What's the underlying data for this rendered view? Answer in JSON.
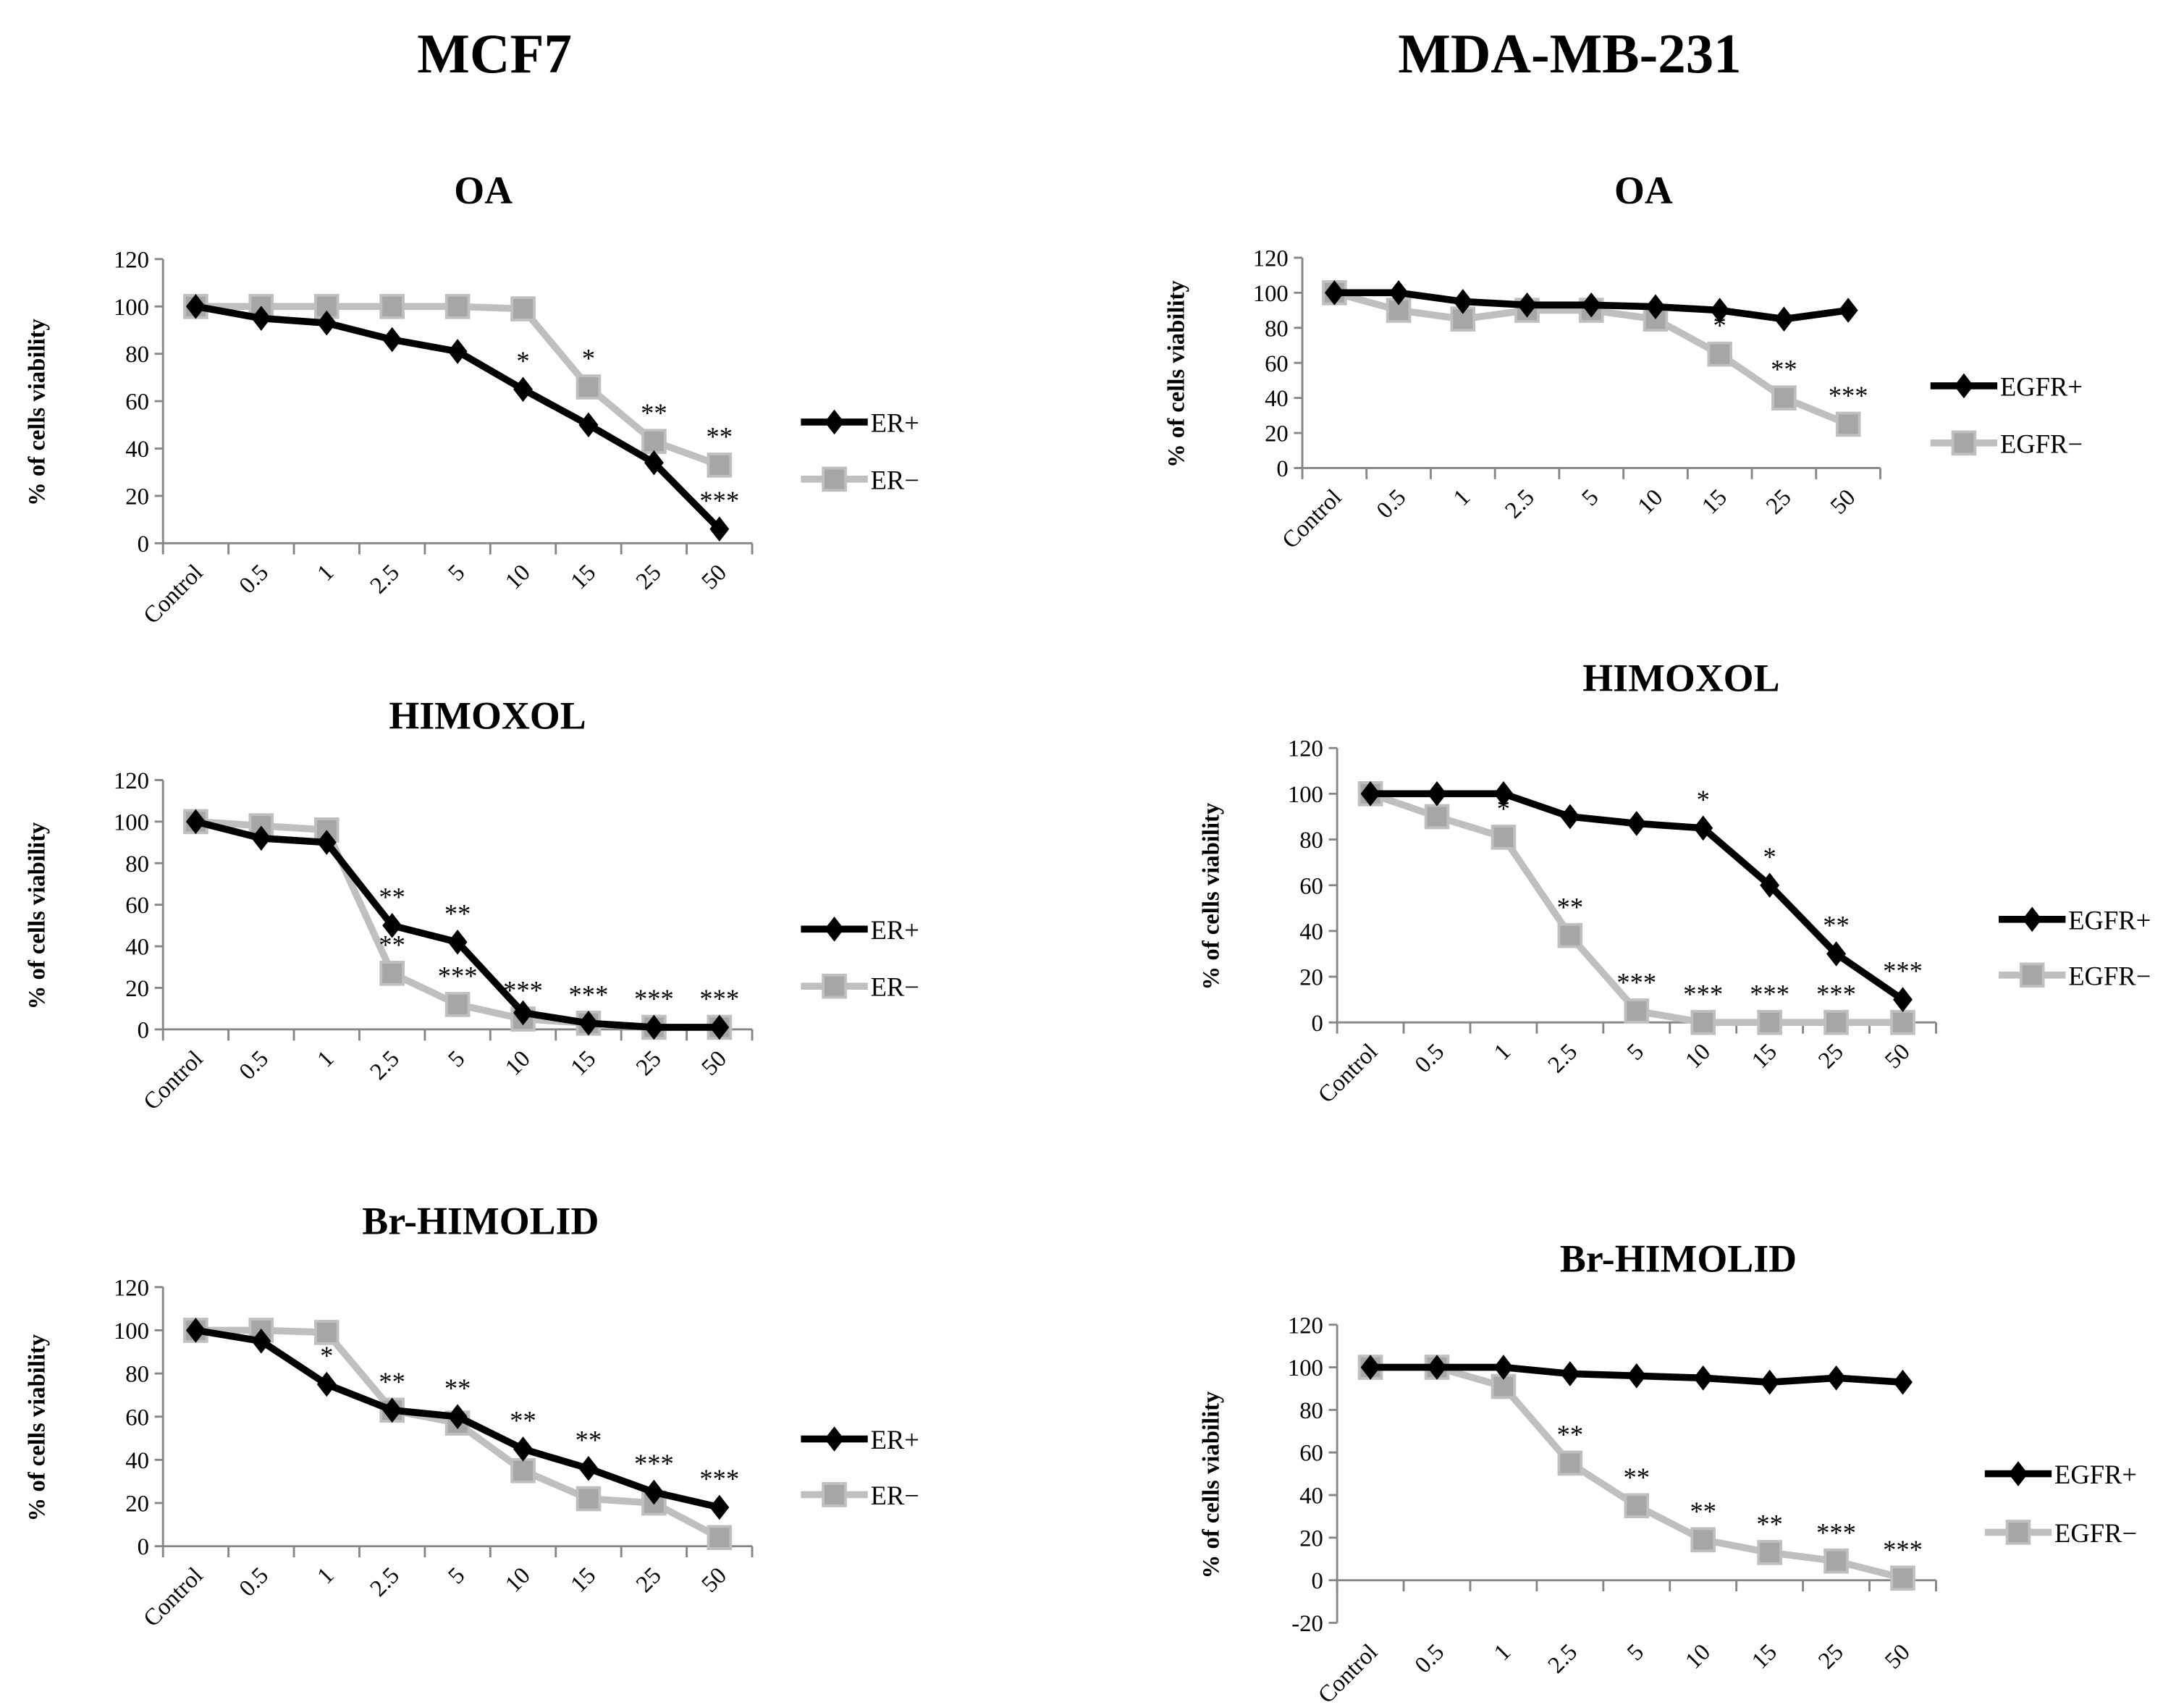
{
  "group_titles": [
    "MCF7",
    "MDA-MB-231"
  ],
  "colors": {
    "positive": "#000000",
    "negative": "#bfbfbf",
    "negative_marker": "#a6a6a6",
    "axis": "#868686"
  },
  "chart_data": [
    {
      "type": "line",
      "group": "MCF7",
      "title": "OA",
      "ylabel": "% of cells viability",
      "ylim": [
        0,
        120
      ],
      "yticks": [
        0,
        20,
        40,
        60,
        80,
        100,
        120
      ],
      "categories": [
        "Control",
        "0.5",
        "1",
        "2.5",
        "5",
        "10",
        "15",
        "25",
        "50"
      ],
      "legend": "right",
      "series": [
        {
          "name": "ER+",
          "marker": "diamond",
          "values": [
            100,
            95,
            93,
            86,
            81,
            65,
            50,
            34,
            6
          ],
          "stars": [
            "",
            "",
            "",
            "",
            "",
            "*",
            "",
            "",
            "***"
          ]
        },
        {
          "name": "ER−",
          "marker": "square",
          "values": [
            100,
            100,
            100,
            100,
            100,
            99,
            66,
            43,
            33
          ],
          "stars": [
            "",
            "",
            "",
            "",
            "",
            "",
            "*",
            "**",
            "**"
          ]
        }
      ]
    },
    {
      "type": "line",
      "group": "MCF7",
      "title": "HIMOXOL",
      "ylabel": "% of cells viability",
      "ylim": [
        0,
        120
      ],
      "yticks": [
        0,
        20,
        40,
        60,
        80,
        100,
        120
      ],
      "categories": [
        "Control",
        "0.5",
        "1",
        "2.5",
        "5",
        "10",
        "15",
        "25",
        "50"
      ],
      "legend": "right",
      "series": [
        {
          "name": "ER+",
          "marker": "diamond",
          "values": [
            100,
            92,
            90,
            50,
            42,
            8,
            3,
            1,
            1
          ],
          "stars": [
            "",
            "",
            "",
            "**",
            "**",
            "",
            "",
            "",
            ""
          ]
        },
        {
          "name": "ER−",
          "marker": "square",
          "values": [
            100,
            98,
            96,
            27,
            12,
            5,
            3,
            1,
            1
          ],
          "stars": [
            "",
            "",
            "",
            "**",
            "***",
            "***",
            "***",
            "***",
            "***"
          ]
        }
      ]
    },
    {
      "type": "line",
      "group": "MCF7",
      "title": "Br-HIMOLID",
      "ylabel": "% of cells viability",
      "ylim": [
        0,
        120
      ],
      "yticks": [
        0,
        20,
        40,
        60,
        80,
        100,
        120
      ],
      "categories": [
        "Control",
        "0.5",
        "1",
        "2.5",
        "5",
        "10",
        "15",
        "25",
        "50"
      ],
      "legend": "right",
      "series": [
        {
          "name": "ER+",
          "marker": "diamond",
          "values": [
            100,
            95,
            75,
            63,
            60,
            45,
            36,
            25,
            18
          ],
          "stars": [
            "",
            "",
            "*",
            "**",
            "**",
            "**",
            "**",
            "***",
            "***"
          ]
        },
        {
          "name": "ER−",
          "marker": "square",
          "values": [
            100,
            100,
            99,
            63,
            57,
            35,
            22,
            20,
            4
          ],
          "stars": [
            "",
            "",
            "",
            "",
            "",
            "",
            "",
            "",
            ""
          ]
        }
      ]
    },
    {
      "type": "line",
      "group": "MDA-MB-231",
      "title": "OA",
      "ylabel": "% of cells viability",
      "ylim": [
        0,
        120
      ],
      "yticks": [
        0,
        20,
        40,
        60,
        80,
        100,
        120
      ],
      "categories": [
        "Control",
        "0.5",
        "1",
        "2.5",
        "5",
        "10",
        "15",
        "25",
        "50"
      ],
      "legend": "right",
      "series": [
        {
          "name": "EGFR+",
          "marker": "diamond",
          "values": [
            100,
            100,
            95,
            93,
            93,
            92,
            90,
            85,
            90
          ],
          "stars": [
            "",
            "",
            "",
            "",
            "",
            "",
            "",
            "",
            ""
          ]
        },
        {
          "name": "EGFR−",
          "marker": "square",
          "values": [
            100,
            90,
            85,
            90,
            90,
            85,
            65,
            40,
            25
          ],
          "stars": [
            "",
            "",
            "",
            "",
            "",
            "",
            "*",
            "**",
            "***"
          ]
        }
      ]
    },
    {
      "type": "line",
      "group": "MDA-MB-231",
      "title": "HIMOXOL",
      "ylabel": "% of cells viability",
      "ylim": [
        0,
        120
      ],
      "yticks": [
        0,
        20,
        40,
        60,
        80,
        100,
        120
      ],
      "categories": [
        "Control",
        "0.5",
        "1",
        "2.5",
        "5",
        "10",
        "15",
        "25",
        "50"
      ],
      "legend": "right",
      "series": [
        {
          "name": "EGFR+",
          "marker": "diamond",
          "values": [
            100,
            100,
            100,
            90,
            87,
            85,
            60,
            30,
            10
          ],
          "stars": [
            "",
            "",
            "",
            "",
            "",
            "*",
            "*",
            "**",
            "***"
          ]
        },
        {
          "name": "EGFR−",
          "marker": "square",
          "values": [
            100,
            90,
            81,
            38,
            5,
            0,
            0,
            0,
            0
          ],
          "stars": [
            "",
            "",
            "*",
            "**",
            "***",
            "***",
            "***",
            "***",
            ""
          ]
        }
      ]
    },
    {
      "type": "line",
      "group": "MDA-MB-231",
      "title": "Br-HIMOLID",
      "ylabel": "% of cells viability",
      "ylim": [
        -20,
        120
      ],
      "yticks": [
        -20,
        0,
        20,
        40,
        60,
        80,
        100,
        120
      ],
      "categories": [
        "Control",
        "0.5",
        "1",
        "2.5",
        "5",
        "10",
        "15",
        "25",
        "50"
      ],
      "legend": "right",
      "series": [
        {
          "name": "EGFR+",
          "marker": "diamond",
          "values": [
            100,
            100,
            100,
            97,
            96,
            95,
            93,
            95,
            93
          ],
          "stars": [
            "",
            "",
            "",
            "",
            "",
            "",
            "",
            "",
            ""
          ]
        },
        {
          "name": "EGFR−",
          "marker": "square",
          "values": [
            100,
            100,
            91,
            55,
            35,
            19,
            13,
            9,
            1
          ],
          "stars": [
            "",
            "",
            "",
            "**",
            "**",
            "**",
            "**",
            "***",
            "***"
          ]
        }
      ]
    }
  ]
}
